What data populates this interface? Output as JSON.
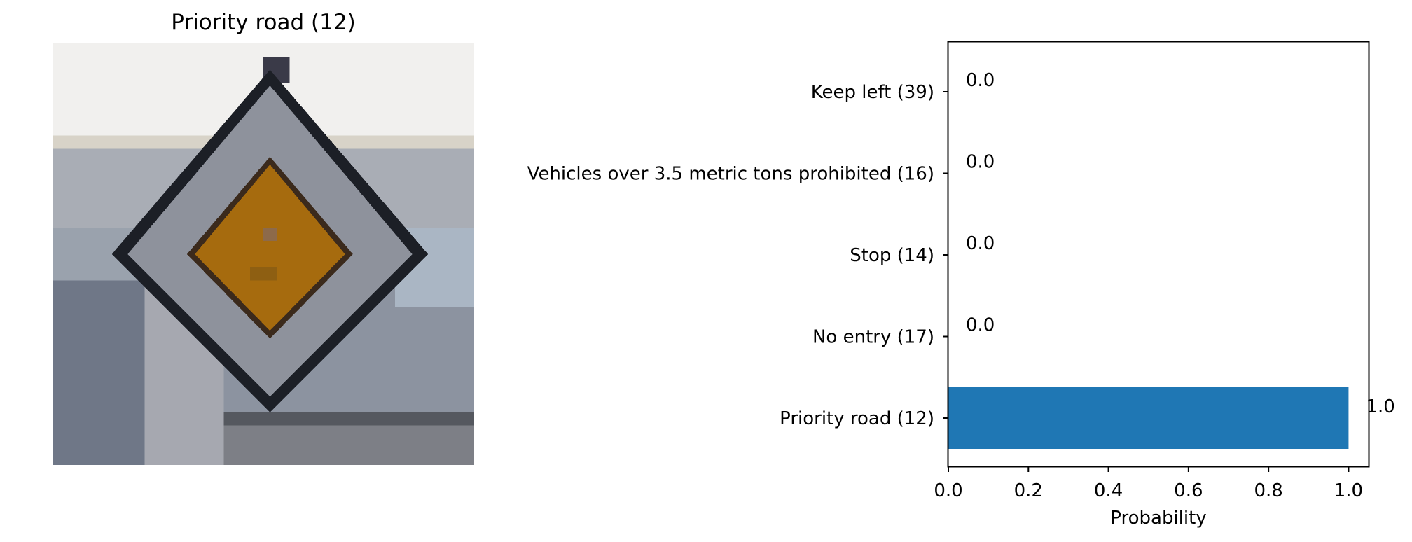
{
  "image_panel": {
    "title": "Priority road (12)",
    "image_description_icon": "priority-road-sign-icon"
  },
  "chart_data": {
    "type": "bar",
    "orientation": "horizontal",
    "categories": [
      "Priority road (12)",
      "No entry (17)",
      "Stop (14)",
      "Vehicles over 3.5 metric tons prohibited (16)",
      "Keep left (39)"
    ],
    "values": [
      1.0,
      0.0,
      0.0,
      0.0,
      0.0
    ],
    "value_labels": [
      "1.0",
      "0.0",
      "0.0",
      "0.0",
      "0.0"
    ],
    "xlabel": "Probability",
    "xlim": [
      0.0,
      1.05
    ],
    "xticks": [
      0.0,
      0.2,
      0.4,
      0.6,
      0.8,
      1.0
    ],
    "xtick_labels": [
      "0.0",
      "0.2",
      "0.4",
      "0.6",
      "0.8",
      "1.0"
    ],
    "grid": false,
    "bar_color": "#1f77b4"
  }
}
